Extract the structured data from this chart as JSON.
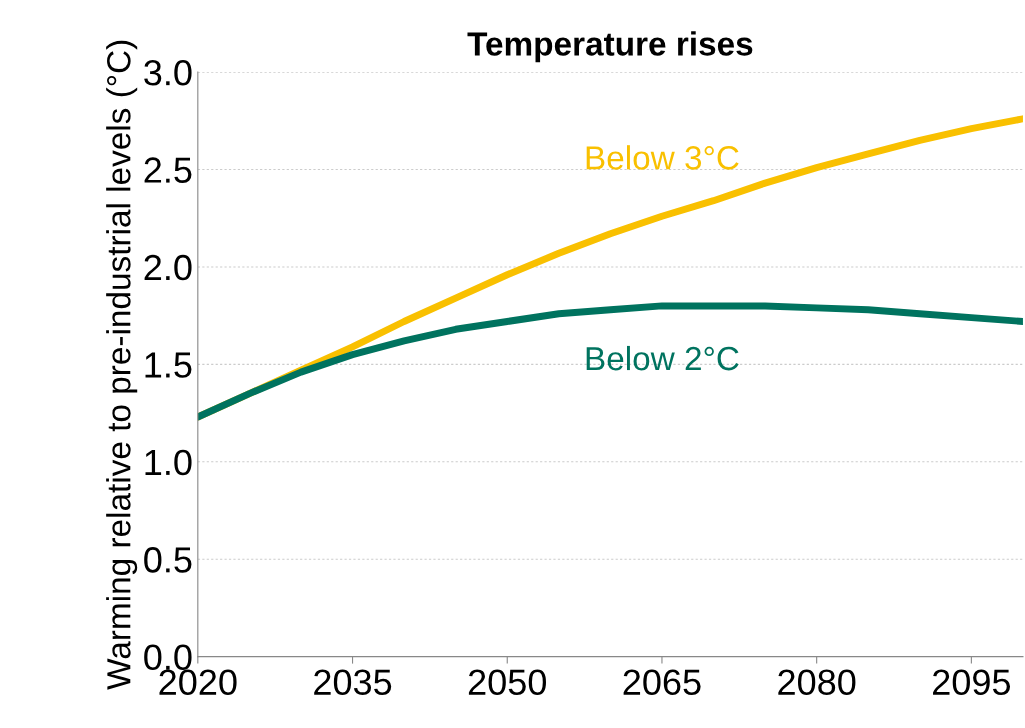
{
  "chart_data": {
    "type": "line",
    "title": "Temperature rises",
    "ylabel": "Warming relative to pre-industrial levels (°C)",
    "x": [
      2020,
      2025,
      2030,
      2035,
      2040,
      2045,
      2050,
      2055,
      2060,
      2065,
      2070,
      2075,
      2080,
      2085,
      2090,
      2095,
      2100
    ],
    "series": [
      {
        "name": "Below 3°C",
        "color": "#f9c000",
        "values": [
          1.23,
          1.35,
          1.47,
          1.59,
          1.72,
          1.84,
          1.96,
          2.07,
          2.17,
          2.26,
          2.34,
          2.43,
          2.51,
          2.58,
          2.65,
          2.71,
          2.76
        ]
      },
      {
        "name": "Below 2°C",
        "color": "#00735f",
        "values": [
          1.23,
          1.35,
          1.46,
          1.55,
          1.62,
          1.68,
          1.72,
          1.76,
          1.78,
          1.8,
          1.8,
          1.8,
          1.79,
          1.78,
          1.76,
          1.74,
          1.72
        ]
      }
    ],
    "xlim": [
      2020,
      2100
    ],
    "xticks": [
      2020,
      2035,
      2050,
      2065,
      2080,
      2095
    ],
    "ylim": [
      0,
      3
    ],
    "yticks": [
      {
        "value": 0,
        "label": "0.0"
      },
      0.5,
      {
        "value": 1,
        "label": "1.0"
      },
      1.5,
      {
        "value": 2,
        "label": "2.0"
      },
      2.5,
      {
        "value": 3,
        "label": "3.0"
      }
    ],
    "grid": "y",
    "line_style": "solid"
  }
}
